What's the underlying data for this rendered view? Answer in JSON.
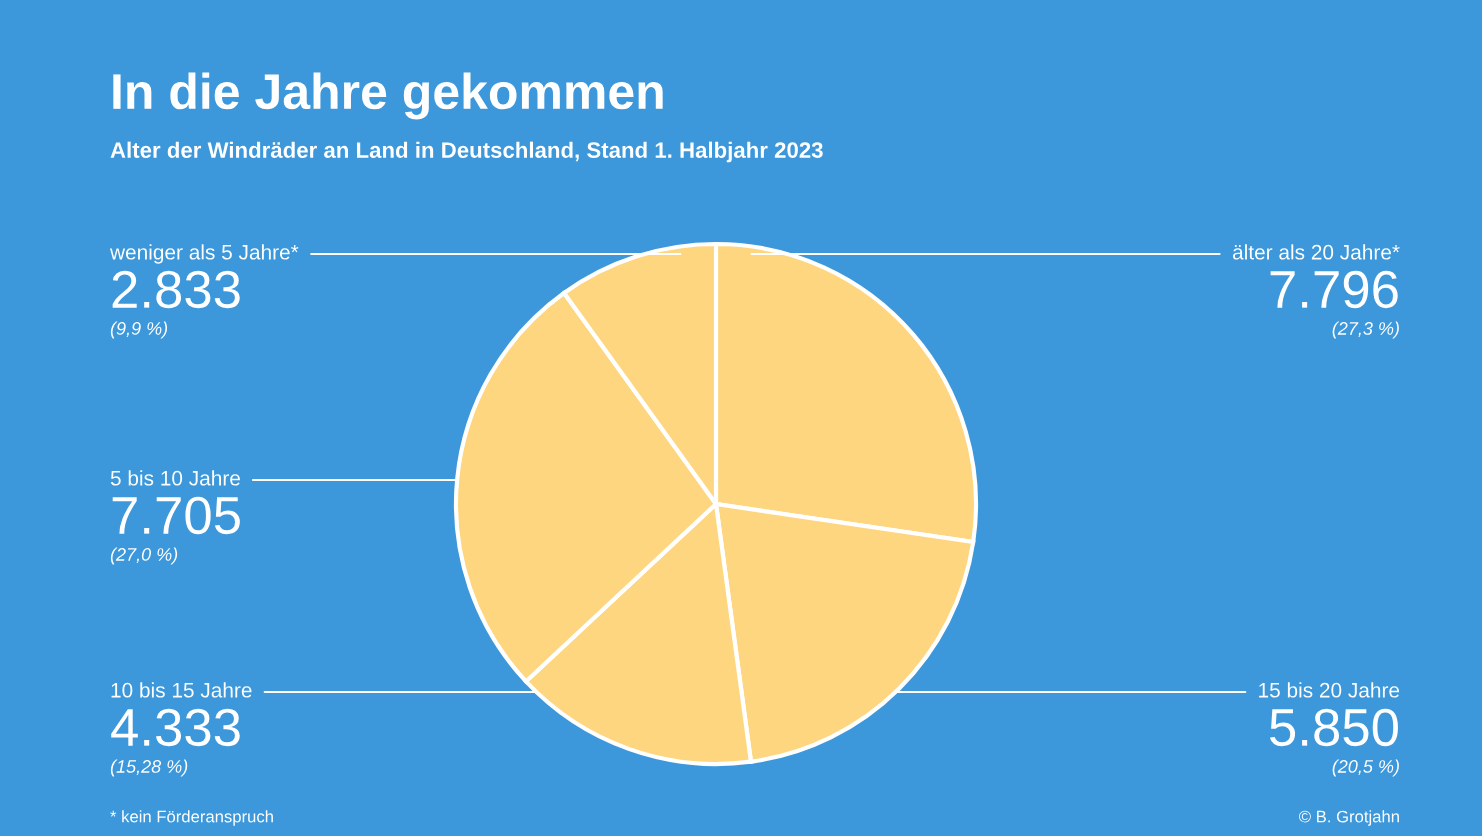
{
  "chart_data": {
    "type": "pie",
    "title": "In die Jahre gekommen",
    "subtitle": "Alter der Windräder an Land in Deutschland, Stand 1. Halbjahr 2023",
    "categories": [
      "älter als 20 Jahre*",
      "15 bis 20 Jahre",
      "10 bis 15 Jahre",
      "5 bis 10 Jahre",
      "weniger als 5 Jahre*"
    ],
    "values": [
      7796,
      5850,
      4333,
      7705,
      2833
    ],
    "colors": [
      "#fed67f",
      "#fed67f",
      "#fed67f",
      "#fed67f",
      "#fed67f"
    ],
    "value_labels": [
      "7.796",
      "5.850",
      "4.333",
      "7.705",
      "2.833"
    ],
    "annotations": [
      {
        "text": "(27,3 %)",
        "x": "älter als 20 Jahre*"
      },
      {
        "text": "(20,5 %)",
        "x": "15 bis 20 Jahre"
      },
      {
        "text": "(15,28 %)",
        "x": "10 bis 15 Jahre"
      },
      {
        "text": "(27,0 %)",
        "x": "5 bis 10 Jahre"
      },
      {
        "text": "(9,9 %)",
        "x": "weniger als 5 Jahre*"
      },
      "* kein Förderanspruch",
      "© B. Grotjahn"
    ],
    "legend": false
  }
}
